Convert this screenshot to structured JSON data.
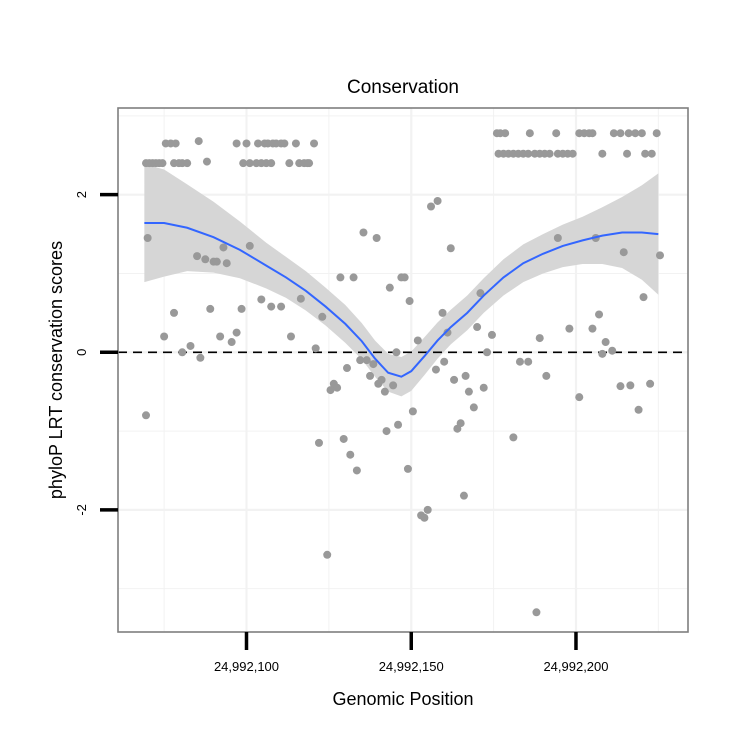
{
  "chart_data": {
    "type": "scatter",
    "title": "Conservation",
    "xlabel": "Genomic Position",
    "ylabel": "phyloP LRT conservation scores",
    "xlim": [
      24992061,
      24992234
    ],
    "ylim": [
      -3.55,
      3.1
    ],
    "x_ticks": [
      {
        "value": 24992100,
        "label": "24,992,100"
      },
      {
        "value": 24992150,
        "label": "24,992,150"
      },
      {
        "value": 24992200,
        "label": "24,992,200"
      }
    ],
    "y_ticks": [
      {
        "value": 2,
        "label": "2"
      },
      {
        "value": 0,
        "label": "0"
      },
      {
        "value": -2,
        "label": "-2"
      }
    ],
    "grid_minor_x": [
      24992075,
      24992125,
      24992175,
      24992225
    ],
    "grid_minor_y": [
      3,
      1,
      -1,
      -3
    ],
    "reference_line": {
      "y": 0,
      "style": "dashed"
    },
    "colors": {
      "points": "#999999",
      "smooth": "#3366FF",
      "band": "#d6d6d6",
      "border": "#7f7f7f",
      "grid": "#f2f2f2"
    },
    "points": [
      [
        24992069.5,
        2.4
      ],
      [
        24992070.5,
        2.4
      ],
      [
        24992071.5,
        2.4
      ],
      [
        24992072.5,
        2.4
      ],
      [
        24992073.5,
        2.4
      ],
      [
        24992074.5,
        2.4
      ],
      [
        24992075.5,
        2.65
      ],
      [
        24992077.0,
        2.65
      ],
      [
        24992078.5,
        2.65
      ],
      [
        24992078.0,
        2.4
      ],
      [
        24992079.5,
        2.4
      ],
      [
        24992080.5,
        2.4
      ],
      [
        24992082.0,
        2.4
      ],
      [
        24992085.5,
        2.68
      ],
      [
        24992088.0,
        2.42
      ],
      [
        24992097.0,
        2.65
      ],
      [
        24992100.0,
        2.65
      ],
      [
        24992099.0,
        2.4
      ],
      [
        24992101.0,
        2.4
      ],
      [
        24992103.5,
        2.65
      ],
      [
        24992103.0,
        2.4
      ],
      [
        24992104.5,
        2.4
      ],
      [
        24992106.0,
        2.4
      ],
      [
        24992107.5,
        2.4
      ],
      [
        24992105.5,
        2.65
      ],
      [
        24992106.5,
        2.65
      ],
      [
        24992108.0,
        2.65
      ],
      [
        24992109.0,
        2.65
      ],
      [
        24992110.5,
        2.65
      ],
      [
        24992111.5,
        2.65
      ],
      [
        24992113.0,
        2.4
      ],
      [
        24992115.0,
        2.65
      ],
      [
        24992116.0,
        2.4
      ],
      [
        24992117.5,
        2.4
      ],
      [
        24992118.5,
        2.4
      ],
      [
        24992120.5,
        2.65
      ],
      [
        24992119.0,
        2.4
      ],
      [
        24992070.0,
        1.45
      ],
      [
        24992069.5,
        -0.8
      ],
      [
        24992075.0,
        0.2
      ],
      [
        24992078.0,
        0.5
      ],
      [
        24992080.5,
        0.0
      ],
      [
        24992083.0,
        0.08
      ],
      [
        24992085.0,
        1.22
      ],
      [
        24992086.0,
        -0.07
      ],
      [
        24992087.5,
        1.18
      ],
      [
        24992089.0,
        0.55
      ],
      [
        24992090.0,
        1.15
      ],
      [
        24992091.0,
        1.15
      ],
      [
        24992092.0,
        0.2
      ],
      [
        24992093.0,
        1.33
      ],
      [
        24992094.0,
        1.13
      ],
      [
        24992095.5,
        0.13
      ],
      [
        24992097.0,
        0.25
      ],
      [
        24992098.5,
        0.55
      ],
      [
        24992101.0,
        1.35
      ],
      [
        24992104.5,
        0.67
      ],
      [
        24992107.5,
        0.58
      ],
      [
        24992110.5,
        0.58
      ],
      [
        24992113.5,
        0.2
      ],
      [
        24992116.5,
        0.68
      ],
      [
        24992121.0,
        0.05
      ],
      [
        24992123.0,
        0.45
      ],
      [
        24992122.0,
        -1.15
      ],
      [
        24992124.5,
        -2.57
      ],
      [
        24992125.5,
        -0.48
      ],
      [
        24992126.5,
        -0.4
      ],
      [
        24992127.5,
        -0.45
      ],
      [
        24992128.5,
        0.95
      ],
      [
        24992129.5,
        -1.1
      ],
      [
        24992130.5,
        -0.2
      ],
      [
        24992131.5,
        -1.3
      ],
      [
        24992132.5,
        0.95
      ],
      [
        24992133.5,
        -1.5
      ],
      [
        24992134.5,
        -0.1
      ],
      [
        24992135.5,
        1.52
      ],
      [
        24992136.5,
        -0.1
      ],
      [
        24992137.5,
        -0.3
      ],
      [
        24992138.5,
        -0.15
      ],
      [
        24992139.5,
        1.45
      ],
      [
        24992140.0,
        -0.4
      ],
      [
        24992141.0,
        -0.35
      ],
      [
        24992142.0,
        -0.5
      ],
      [
        24992142.5,
        -1.0
      ],
      [
        24992143.5,
        0.82
      ],
      [
        24992144.5,
        -0.42
      ],
      [
        24992145.5,
        0.0
      ],
      [
        24992146.0,
        -0.92
      ],
      [
        24992147.0,
        0.95
      ],
      [
        24992148.0,
        0.95
      ],
      [
        24992149.0,
        -1.48
      ],
      [
        24992149.5,
        0.65
      ],
      [
        24992150.5,
        -0.75
      ],
      [
        24992152.0,
        0.15
      ],
      [
        24992153.0,
        -2.07
      ],
      [
        24992154.0,
        -2.1
      ],
      [
        24992155.0,
        -2.0
      ],
      [
        24992156.0,
        1.85
      ],
      [
        24992157.5,
        -0.22
      ],
      [
        24992158.0,
        1.92
      ],
      [
        24992159.5,
        0.5
      ],
      [
        24992160.0,
        -0.12
      ],
      [
        24992161.0,
        0.25
      ],
      [
        24992162.0,
        1.32
      ],
      [
        24992163.0,
        -0.35
      ],
      [
        24992164.0,
        -0.97
      ],
      [
        24992165.0,
        -0.9
      ],
      [
        24992166.0,
        -1.82
      ],
      [
        24992166.5,
        -0.3
      ],
      [
        24992167.5,
        -0.5
      ],
      [
        24992169.0,
        -0.7
      ],
      [
        24992170.0,
        0.32
      ],
      [
        24992171.0,
        0.75
      ],
      [
        24992172.0,
        -0.45
      ],
      [
        24992173.0,
        0.0
      ],
      [
        24992174.5,
        0.22
      ],
      [
        24992176.0,
        2.78
      ],
      [
        24992177.0,
        2.78
      ],
      [
        24992178.5,
        2.78
      ],
      [
        24992176.5,
        2.52
      ],
      [
        24992178.0,
        2.52
      ],
      [
        24992179.5,
        2.52
      ],
      [
        24992181.0,
        2.52
      ],
      [
        24992182.5,
        2.52
      ],
      [
        24992184.0,
        2.52
      ],
      [
        24992185.5,
        2.52
      ],
      [
        24992186.0,
        2.78
      ],
      [
        24992187.5,
        2.52
      ],
      [
        24992189.0,
        2.52
      ],
      [
        24992190.5,
        2.52
      ],
      [
        24992192.0,
        2.52
      ],
      [
        24992194.0,
        2.78
      ],
      [
        24992194.5,
        2.52
      ],
      [
        24992196.0,
        2.52
      ],
      [
        24992197.5,
        2.52
      ],
      [
        24992199.0,
        2.52
      ],
      [
        24992201.0,
        2.78
      ],
      [
        24992202.5,
        2.78
      ],
      [
        24992204.0,
        2.78
      ],
      [
        24992205.0,
        2.78
      ],
      [
        24992211.5,
        2.78
      ],
      [
        24992213.5,
        2.78
      ],
      [
        24992216.0,
        2.78
      ],
      [
        24992218.0,
        2.78
      ],
      [
        24992220.0,
        2.78
      ],
      [
        24992224.5,
        2.78
      ],
      [
        24992208.0,
        2.52
      ],
      [
        24992215.5,
        2.52
      ],
      [
        24992221.0,
        2.52
      ],
      [
        24992223.0,
        2.52
      ],
      [
        24992181.0,
        -1.08
      ],
      [
        24992183.0,
        -0.12
      ],
      [
        24992185.5,
        -0.12
      ],
      [
        24992188.0,
        -3.3
      ],
      [
        24992189.0,
        0.18
      ],
      [
        24992191.0,
        -0.3
      ],
      [
        24992194.5,
        1.45
      ],
      [
        24992198.0,
        0.3
      ],
      [
        24992201.0,
        -0.57
      ],
      [
        24992205.0,
        0.3
      ],
      [
        24992206.0,
        1.45
      ],
      [
        24992207.0,
        0.48
      ],
      [
        24992208.0,
        -0.02
      ],
      [
        24992209.0,
        0.13
      ],
      [
        24992211.0,
        0.02
      ],
      [
        24992213.5,
        -0.43
      ],
      [
        24992214.5,
        1.27
      ],
      [
        24992216.5,
        -0.42
      ],
      [
        24992219.0,
        -0.73
      ],
      [
        24992220.5,
        0.7
      ],
      [
        24992222.5,
        -0.4
      ],
      [
        24992225.5,
        1.23
      ]
    ],
    "smooth": [
      [
        24992069,
        1.64
      ],
      [
        24992075,
        1.64
      ],
      [
        24992082,
        1.58
      ],
      [
        24992090,
        1.46
      ],
      [
        24992098,
        1.3
      ],
      [
        24992106,
        1.1
      ],
      [
        24992112,
        0.95
      ],
      [
        24992118,
        0.78
      ],
      [
        24992124,
        0.58
      ],
      [
        24992130,
        0.36
      ],
      [
        24992135,
        0.14
      ],
      [
        24992139,
        -0.08
      ],
      [
        24992143,
        -0.26
      ],
      [
        24992147,
        -0.31
      ],
      [
        24992150,
        -0.24
      ],
      [
        24992154,
        -0.05
      ],
      [
        24992158,
        0.15
      ],
      [
        24992162,
        0.32
      ],
      [
        24992167,
        0.5
      ],
      [
        24992172,
        0.72
      ],
      [
        24992178,
        0.95
      ],
      [
        24992184,
        1.13
      ],
      [
        24992190,
        1.25
      ],
      [
        24992196,
        1.35
      ],
      [
        24992202,
        1.42
      ],
      [
        24992208,
        1.48
      ],
      [
        24992214,
        1.52
      ],
      [
        24992220,
        1.52
      ],
      [
        24992225,
        1.5
      ]
    ],
    "band_half_width": [
      0.75,
      0.68,
      0.55,
      0.45,
      0.36,
      0.29,
      0.26,
      0.25,
      0.24,
      0.24,
      0.23,
      0.23,
      0.24,
      0.25,
      0.25,
      0.24,
      0.23,
      0.22,
      0.22,
      0.22,
      0.23,
      0.24,
      0.25,
      0.27,
      0.3,
      0.36,
      0.45,
      0.6,
      0.77
    ]
  }
}
